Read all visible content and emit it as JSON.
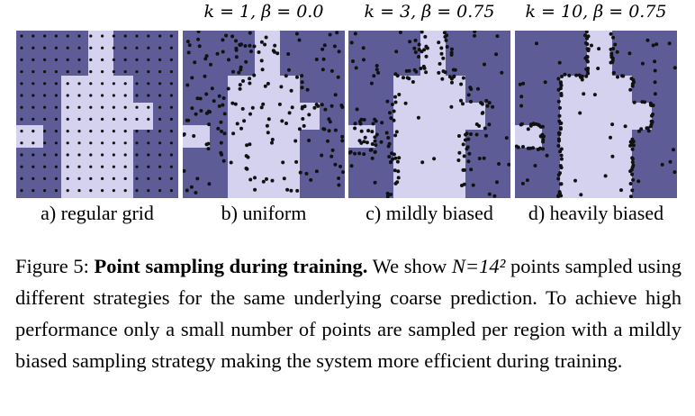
{
  "panels": [
    {
      "id": "a",
      "param": "",
      "caption": "a) regular grid",
      "mode": "grid",
      "seed": 1
    },
    {
      "id": "b",
      "param": "k = 1, β = 0.0",
      "caption": "b) uniform",
      "mode": "uniform",
      "seed": 7
    },
    {
      "id": "c",
      "param": "k = 3, β = 0.75",
      "caption": "c) mildly biased",
      "mode": "mild",
      "seed": 13
    },
    {
      "id": "d",
      "param": "k = 10, β = 0.75",
      "caption": "d) heavily biased",
      "mode": "heavy",
      "seed": 29
    }
  ],
  "colors": {
    "background_region": "#5e5c96",
    "foreground_region": "#d4d2ee",
    "point": "#111111"
  },
  "caption": {
    "label": "Figure 5:",
    "title": "Point sampling during training.",
    "body_pre": "We show",
    "formula": "N=14²",
    "body_post": "points sampled using different strategies for the same underlying coarse prediction. To achieve high performance only a small number of points are sampled per region with a mildly biased sampling strategy making the system more efficient during training."
  }
}
